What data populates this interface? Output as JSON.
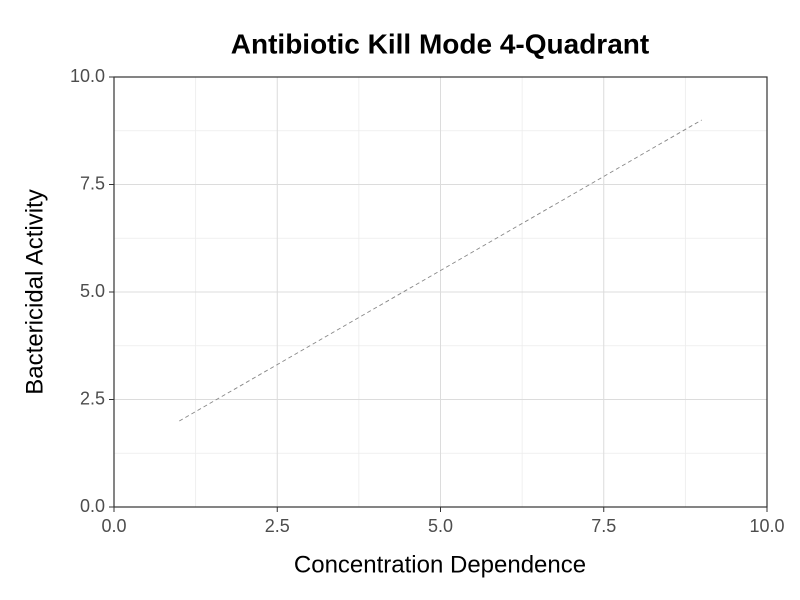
{
  "chart_data": {
    "type": "line",
    "title": "Antibiotic Kill Mode 4-Quadrant",
    "x_label": "Concentration Dependence",
    "y_label": "Bactericidal Activity",
    "x": [
      1,
      9
    ],
    "series": [
      {
        "values": [
          2,
          9
        ],
        "color": "#888888",
        "linestyle": "dashed"
      }
    ],
    "xlim": [
      0,
      10
    ],
    "ylim": [
      0,
      10
    ],
    "xticks": [
      {
        "value": 0,
        "label": "0.0"
      },
      2.5,
      {
        "value": 5,
        "label": "5.0"
      },
      7.5,
      {
        "value": 10,
        "label": "10.0"
      }
    ],
    "yticks": [
      {
        "value": 0,
        "label": "0.0"
      },
      2.5,
      {
        "value": 5,
        "label": "5.0"
      },
      7.5,
      {
        "value": 10,
        "label": "10.0"
      }
    ],
    "grid": true
  }
}
